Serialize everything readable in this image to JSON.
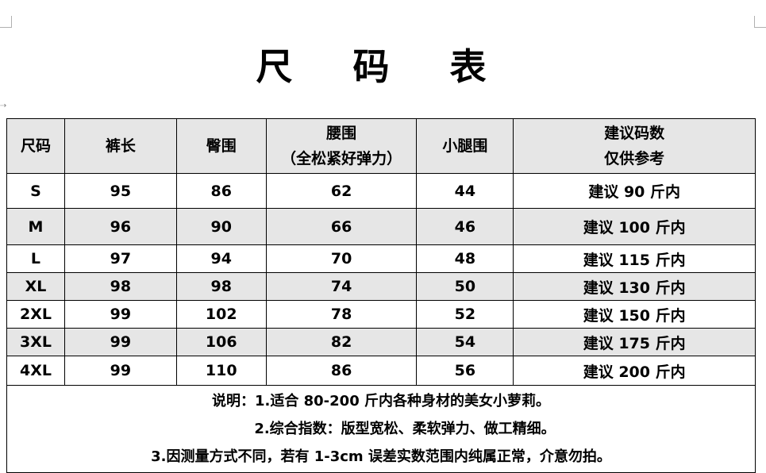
{
  "title": "尺 码 表",
  "table": {
    "headers": [
      "尺码",
      "裤长",
      "臀围",
      "腰围\n（全松紧好弹力）",
      "小腿围",
      "建议码数\n仅供参考"
    ],
    "rows": [
      [
        "S",
        "95",
        "86",
        "62",
        "44",
        "建议 90 斤内"
      ],
      [
        "M",
        "96",
        "90",
        "66",
        "46",
        "建议 100 斤内"
      ],
      [
        "L",
        "97",
        "94",
        "70",
        "48",
        "建议 115 斤内"
      ],
      [
        "XL",
        "98",
        "98",
        "74",
        "50",
        "建议 130 斤内"
      ],
      [
        "2XL",
        "99",
        "102",
        "78",
        "52",
        "建议 150 斤内"
      ],
      [
        "3XL",
        "99",
        "106",
        "82",
        "54",
        "建议 175 斤内"
      ],
      [
        "4XL",
        "99",
        "110",
        "86",
        "56",
        "建议 200 斤内"
      ]
    ],
    "notes": [
      "说明：1.适合 80-200 斤内各种身材的美女小萝莉。",
      "2.综合指数：版型宽松、柔软弹力、做工精细。",
      "3.因测量方式不同，若有 1-3cm 误差实数范围内纯属正常，介意勿拍。"
    ]
  },
  "colors": {
    "header_bg": "#e6e6e6",
    "alt_row_bg": "#e6e6e6"
  }
}
